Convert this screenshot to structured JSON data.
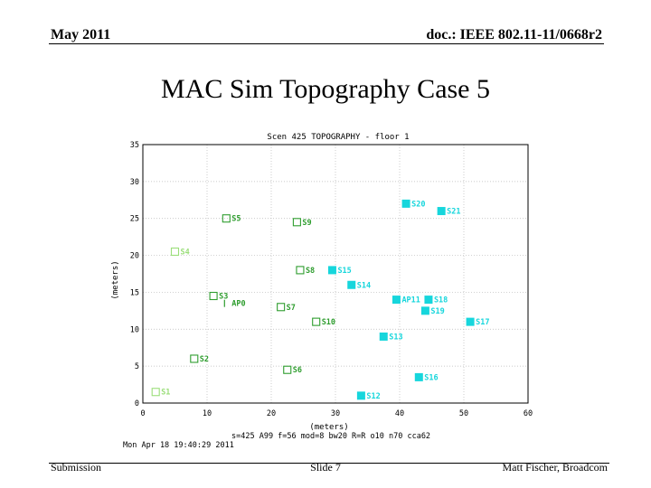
{
  "header": {
    "date": "May 2011",
    "doc": "doc.: IEEE 802.11-11/0668r2"
  },
  "slide_title": "MAC Sim Topography Case 5",
  "footer": {
    "left": "Submission",
    "center": "Slide 7",
    "right": "Matt Fischer, Broadcom"
  },
  "chart_data": {
    "type": "scatter",
    "title": "Scen 425 TOPOGRAPHY - floor 1",
    "xlabel": "(meters)",
    "ylabel": "(meters)",
    "xlim": [
      0,
      60
    ],
    "ylim": [
      0,
      35
    ],
    "xticks": [
      0,
      10,
      20,
      30,
      40,
      50,
      60
    ],
    "yticks": [
      0,
      5,
      10,
      15,
      20,
      25,
      30,
      35
    ],
    "grid": true,
    "colors": {
      "green": "#2e9d2e",
      "lightgreen": "#9bde7a",
      "cyan": "#16d6dc",
      "grid": "#b8b8b8"
    },
    "points": [
      {
        "label": "S1",
        "x": 2,
        "y": 1.5,
        "style": "open-light"
      },
      {
        "label": "S2",
        "x": 8,
        "y": 6,
        "style": "open"
      },
      {
        "label": "S3",
        "x": 11,
        "y": 14.5,
        "style": "open"
      },
      {
        "label": "S4",
        "x": 5,
        "y": 20.5,
        "style": "open-light"
      },
      {
        "label": "S5",
        "x": 13,
        "y": 25,
        "style": "open"
      },
      {
        "label": "S6",
        "x": 22.5,
        "y": 4.5,
        "style": "open"
      },
      {
        "label": "S7",
        "x": 21.5,
        "y": 13,
        "style": "open"
      },
      {
        "label": "S8",
        "x": 24.5,
        "y": 18,
        "style": "open"
      },
      {
        "label": "S9",
        "x": 24,
        "y": 24.5,
        "style": "open"
      },
      {
        "label": "S10",
        "x": 27,
        "y": 11,
        "style": "open"
      },
      {
        "label": "S12",
        "x": 34,
        "y": 1,
        "style": "filled"
      },
      {
        "label": "S13",
        "x": 37.5,
        "y": 9,
        "style": "filled"
      },
      {
        "label": "S14",
        "x": 32.5,
        "y": 16,
        "style": "filled"
      },
      {
        "label": "S15",
        "x": 29.5,
        "y": 18,
        "style": "filled"
      },
      {
        "label": "S16",
        "x": 43,
        "y": 3.5,
        "style": "filled"
      },
      {
        "label": "S17",
        "x": 51,
        "y": 11,
        "style": "filled"
      },
      {
        "label": "S18",
        "x": 44.5,
        "y": 14,
        "style": "filled"
      },
      {
        "label": "S19",
        "x": 44,
        "y": 12.5,
        "style": "filled"
      },
      {
        "label": "S20",
        "x": 41,
        "y": 27,
        "style": "filled"
      },
      {
        "label": "S21",
        "x": 46.5,
        "y": 26,
        "style": "filled"
      },
      {
        "label": "AP11",
        "x": 39.5,
        "y": 14,
        "style": "filled"
      },
      {
        "label": "AP0",
        "x": 13,
        "y": 13.5,
        "style": "bracket"
      }
    ],
    "params": "s=425 A99 f=56 mod=8 bw20 R=R o10 n70 cca62",
    "timestamp": "Mon Apr 18 19:40:29 2011"
  }
}
